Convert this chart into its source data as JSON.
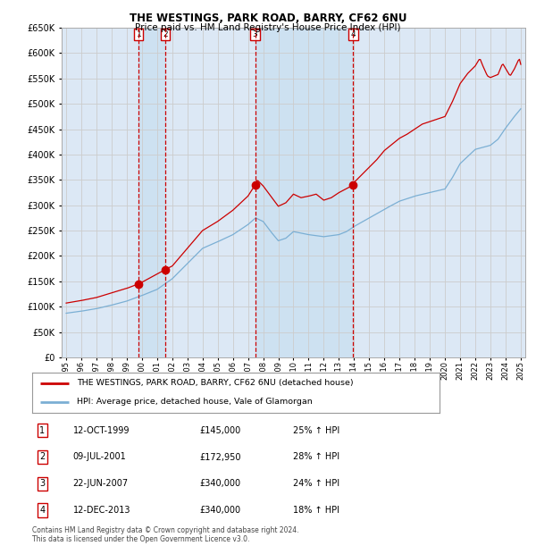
{
  "title": "THE WESTINGS, PARK ROAD, BARRY, CF62 6NU",
  "subtitle": "Price paid vs. HM Land Registry's House Price Index (HPI)",
  "legend_line1": "THE WESTINGS, PARK ROAD, BARRY, CF62 6NU (detached house)",
  "legend_line2": "HPI: Average price, detached house, Vale of Glamorgan",
  "footer": "Contains HM Land Registry data © Crown copyright and database right 2024.\nThis data is licensed under the Open Government Licence v3.0.",
  "table": [
    {
      "num": "1",
      "date": "12-OCT-1999",
      "price": "£145,000",
      "hpi": "25% ↑ HPI"
    },
    {
      "num": "2",
      "date": "09-JUL-2001",
      "price": "£172,950",
      "hpi": "28% ↑ HPI"
    },
    {
      "num": "3",
      "date": "22-JUN-2007",
      "price": "£340,000",
      "hpi": "24% ↑ HPI"
    },
    {
      "num": "4",
      "date": "12-DEC-2013",
      "price": "£340,000",
      "hpi": "18% ↑ HPI"
    }
  ],
  "sale_dates_year": [
    1999.79,
    2001.53,
    2007.47,
    2013.95
  ],
  "sale_prices": [
    145000,
    172950,
    340000,
    340000
  ],
  "hpi_color": "#7bafd4",
  "price_color": "#cc0000",
  "vline_color": "#cc0000",
  "grid_color": "#cccccc",
  "background_color": "#dce8f5",
  "shade_color": "#c8dff0",
  "ylim": [
    0,
    650000
  ],
  "yticks": [
    0,
    50000,
    100000,
    150000,
    200000,
    250000,
    300000,
    350000,
    400000,
    450000,
    500000,
    550000,
    600000,
    650000
  ],
  "year_start": 1995,
  "year_end": 2025
}
